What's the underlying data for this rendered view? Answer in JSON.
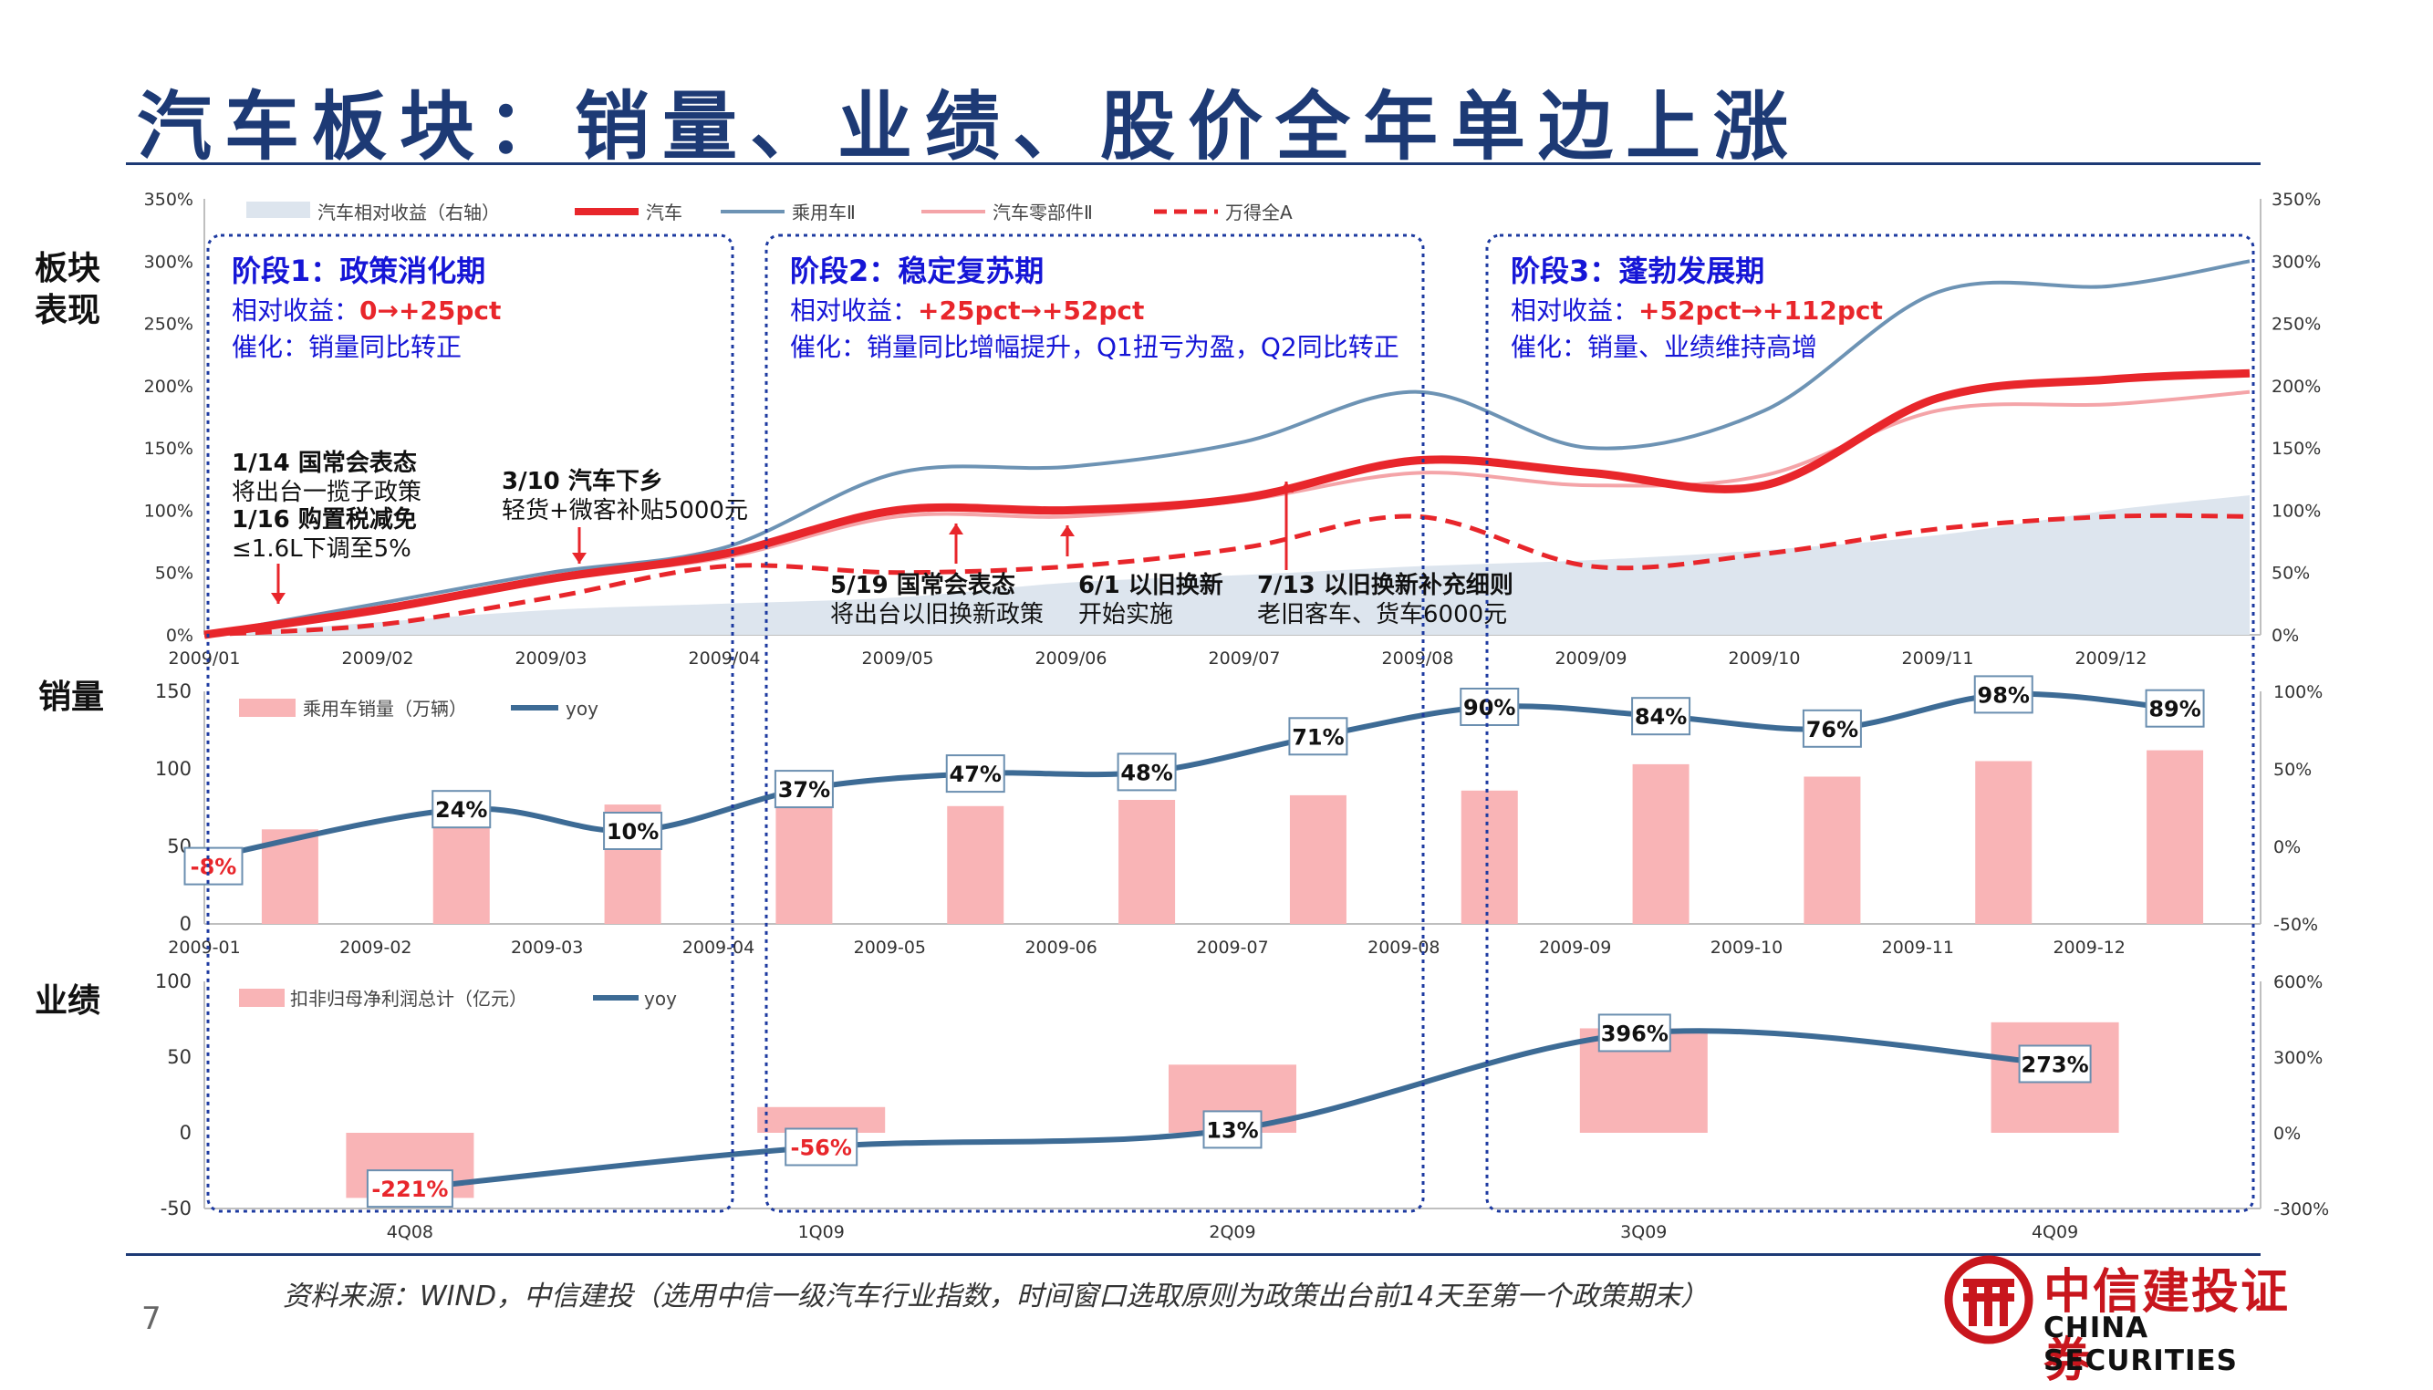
{
  "title": "汽车板块：销量、业绩、股价全年单边上涨",
  "row_labels": {
    "board": "板块\n表现",
    "sales": "销量",
    "earnings": "业绩"
  },
  "source": "资料来源：WIND，中信建投（选用中信一级汽车行业指数，时间窗口选取原则为政策出台前14天至第一个政策期末）",
  "page_number": "7",
  "logo": {
    "cn": "中信建投证券",
    "en": "CHINA SECURITIES",
    "name": "citic-logo-icon"
  },
  "colors": {
    "auto": "#e8262b",
    "passenger": "#6d93b4",
    "parts": "#f4a4a8",
    "wind": "#e8262b",
    "area": "#dde5ee",
    "bar": "#f9b4b6",
    "yoy": "#3d6b95",
    "stage_border": "#1d3aa0",
    "stage_title": "#1515d6",
    "red": "#e8262b"
  },
  "stages": [
    {
      "title": "阶段1：政策消化期",
      "rel_prefix": "相对收益：",
      "rel_value": "0→+25pct",
      "catalyst": "催化：销量同比转正"
    },
    {
      "title": "阶段2：稳定复苏期",
      "rel_prefix": "相对收益：",
      "rel_value": "+25pct→+52pct",
      "catalyst": "催化：销量同比增幅提升，Q1扭亏为盈，Q2同比转正"
    },
    {
      "title": "阶段3：蓬勃发展期",
      "rel_prefix": "相对收益：",
      "rel_value": "+52pct→+112pct",
      "catalyst": "催化：销量、业绩维持高增"
    }
  ],
  "annotations": [
    {
      "bold": "1/14 国常会表态",
      "text": "将出台一揽子政策"
    },
    {
      "bold": "1/16 购置税减免",
      "text": "≤1.6L下调至5%"
    },
    {
      "bold": "3/10 汽车下乡",
      "text": "轻货+微客补贴5000元"
    },
    {
      "bold": "5/19 国常会表态",
      "text": "将出台以旧换新政策"
    },
    {
      "bold": "6/1 以旧换新",
      "text": "开始实施"
    },
    {
      "bold": "7/13 以旧换新补充细则",
      "text": "老旧客车、货车6000元"
    }
  ],
  "chart_data": [
    {
      "type": "line",
      "x_labels": [
        "2009/01",
        "2009/02",
        "2009/03",
        "2009/04",
        "2009/05",
        "2009/06",
        "2009/07",
        "2009/08",
        "2009/09",
        "2009/10",
        "2009/11",
        "2009/12"
      ],
      "x": [
        0,
        1,
        2,
        3,
        4,
        5,
        6,
        7,
        8,
        9,
        10,
        11,
        11.8
      ],
      "ylim": [
        0,
        3.5
      ],
      "y_ticks": [
        "0%",
        "50%",
        "100%",
        "150%",
        "200%",
        "250%",
        "300%",
        "350%"
      ],
      "y2_ticks": [
        "0%",
        "50%",
        "100%",
        "150%",
        "200%",
        "250%",
        "300%",
        "350%"
      ],
      "legend": [
        "汽车相对收益（右轴）",
        "汽车",
        "乘用车Ⅱ",
        "汽车零部件Ⅱ",
        "万得全A"
      ],
      "series": [
        {
          "name": "汽车相对收益（右轴）",
          "kind": "area",
          "values": [
            0,
            0.1,
            0.2,
            0.25,
            0.3,
            0.42,
            0.48,
            0.55,
            0.6,
            0.68,
            0.8,
            1.0,
            1.12
          ]
        },
        {
          "name": "乘用车Ⅱ",
          "kind": "line",
          "values": [
            0,
            0.25,
            0.5,
            0.7,
            1.3,
            1.35,
            1.55,
            1.95,
            1.5,
            1.8,
            2.75,
            2.8,
            3.0
          ]
        },
        {
          "name": "汽车零部件Ⅱ",
          "kind": "line",
          "values": [
            0,
            0.22,
            0.45,
            0.62,
            0.95,
            0.95,
            1.08,
            1.3,
            1.2,
            1.28,
            1.8,
            1.85,
            1.95
          ]
        },
        {
          "name": "汽车",
          "kind": "line",
          "values": [
            0,
            0.2,
            0.45,
            0.65,
            1.0,
            1.0,
            1.1,
            1.4,
            1.3,
            1.2,
            1.9,
            2.05,
            2.1
          ]
        },
        {
          "name": "万得全A",
          "kind": "dashed",
          "values": [
            0,
            0.08,
            0.3,
            0.55,
            0.5,
            0.55,
            0.7,
            0.95,
            0.55,
            0.65,
            0.85,
            0.95,
            0.95
          ]
        }
      ]
    },
    {
      "type": "bar",
      "categories": [
        "2009-01",
        "2009-02",
        "2009-03",
        "2009-04",
        "2009-05",
        "2009-06",
        "2009-07",
        "2009-08",
        "2009-09",
        "2009-10",
        "2009-11",
        "2009-12"
      ],
      "ylim": [
        0,
        150
      ],
      "y_ticks": [
        "0",
        "50",
        "100",
        "150"
      ],
      "y2lim": [
        -0.5,
        1.0
      ],
      "y2_ticks": [
        "-50%",
        "0%",
        "50%",
        "100%"
      ],
      "legend": [
        "乘用车销量（万辆）",
        "yoy"
      ],
      "series": [
        {
          "name": "乘用车销量（万辆）",
          "values": [
            61,
            68,
            77,
            83,
            76,
            80,
            83,
            86,
            103,
            95,
            105,
            112
          ]
        },
        {
          "name": "yoy",
          "values": [
            -0.08,
            0.24,
            0.1,
            0.37,
            0.47,
            0.48,
            0.71,
            0.9,
            0.84,
            0.76,
            0.98,
            0.89
          ],
          "labels": [
            "-8%",
            "24%",
            "10%",
            "37%",
            "47%",
            "48%",
            "71%",
            "90%",
            "84%",
            "76%",
            "98%",
            "89%"
          ]
        }
      ]
    },
    {
      "type": "bar",
      "categories": [
        "4Q08",
        "1Q09",
        "2Q09",
        "3Q09",
        "4Q09"
      ],
      "ylim": [
        -50,
        100
      ],
      "y_ticks": [
        "-50",
        "0",
        "50",
        "100"
      ],
      "y2lim": [
        -3.0,
        6.0
      ],
      "y2_ticks": [
        "-300%",
        "0%",
        "300%",
        "600%"
      ],
      "legend": [
        "扣非归母净利润总计（亿元）",
        "yoy"
      ],
      "series": [
        {
          "name": "扣非归母净利润总计（亿元）",
          "values": [
            -43,
            17,
            45,
            69,
            73
          ]
        },
        {
          "name": "yoy",
          "values": [
            -2.21,
            -0.56,
            0.13,
            3.96,
            2.73
          ],
          "labels": [
            "-221%",
            "-56%",
            "13%",
            "396%",
            "273%"
          ]
        }
      ]
    }
  ]
}
